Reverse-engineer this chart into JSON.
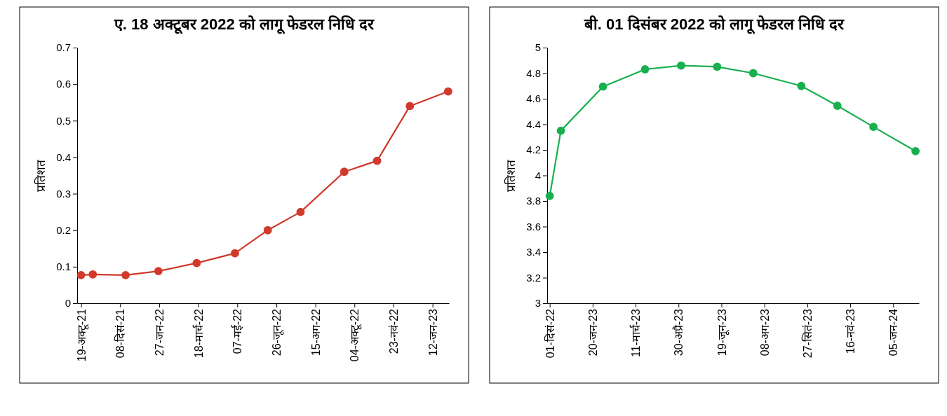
{
  "chart_data": [
    {
      "type": "line",
      "title": "ए. 18 अक्टूबर 2022 को लागू फेडरल निधि दर",
      "ylabel": "प्रतिशत",
      "marker": "circle",
      "grid": false,
      "x": [
        "2021-10-19",
        "2021-11-03",
        "2021-12-15",
        "2022-01-26",
        "2022-03-16",
        "2022-05-04",
        "2022-06-15",
        "2022-07-27",
        "2022-09-21",
        "2022-11-02",
        "2022-12-14",
        "2023-02-01"
      ],
      "series": [
        {
          "color": "#d0392b",
          "values": [
            0.077,
            0.079,
            0.077,
            0.088,
            0.11,
            0.137,
            0.2,
            0.25,
            0.36,
            0.39,
            0.54,
            0.58
          ]
        }
      ],
      "xlim": [
        "2021-10-14",
        "2023-02-02"
      ],
      "ylim": [
        0,
        0.7
      ],
      "yticks": [
        0,
        0.1,
        0.2,
        0.3,
        0.4,
        0.5,
        0.6,
        0.7
      ],
      "xticks": [
        {
          "value": "2021-10-19",
          "label": "19-अक्टू-21"
        },
        {
          "value": "2021-12-08",
          "label": "08-दिसं-21"
        },
        {
          "value": "2022-01-27",
          "label": "27-जन-22"
        },
        {
          "value": "2022-03-18",
          "label": "18-मार्च-22"
        },
        {
          "value": "2022-05-07",
          "label": "07-मई-22"
        },
        {
          "value": "2022-06-26",
          "label": "26-जून-22"
        },
        {
          "value": "2022-08-15",
          "label": "15-अग-22"
        },
        {
          "value": "2022-10-04",
          "label": "04-अक्टू-22"
        },
        {
          "value": "2022-11-23",
          "label": "23-नवं-22"
        },
        {
          "value": "2023-01-12",
          "label": "12-जन-23"
        }
      ]
    },
    {
      "type": "line",
      "title": "बी. 01 दिसंबर 2022 को लागू फेडरल निधि दर",
      "ylabel": "प्रतिशत",
      "marker": "circle",
      "grid": false,
      "x": [
        "2022-12-01",
        "2022-12-14",
        "2023-02-01",
        "2023-03-22",
        "2023-05-03",
        "2023-06-14",
        "2023-07-26",
        "2023-09-20",
        "2023-11-01",
        "2023-12-13",
        "2024-01-31"
      ],
      "series": [
        {
          "color": "#18b04f",
          "values": [
            3.84,
            4.35,
            4.695,
            4.83,
            4.86,
            4.85,
            4.8,
            4.7,
            4.545,
            4.38,
            4.19
          ]
        }
      ],
      "xlim": [
        "2022-11-28",
        "2024-02-04"
      ],
      "ylim": [
        3,
        5
      ],
      "yticks": [
        3,
        3.2,
        3.4,
        3.6,
        3.8,
        4,
        4.2,
        4.4,
        4.6,
        4.8,
        5
      ],
      "xticks": [
        {
          "value": "2022-12-01",
          "label": "01-दिसं-22"
        },
        {
          "value": "2023-01-20",
          "label": "20-जन-23"
        },
        {
          "value": "2023-03-11",
          "label": "11-मार्च-23"
        },
        {
          "value": "2023-04-30",
          "label": "30-अप्रै-23"
        },
        {
          "value": "2023-06-19",
          "label": "19-जून-23"
        },
        {
          "value": "2023-08-08",
          "label": "08-अग-23"
        },
        {
          "value": "2023-09-27",
          "label": "27-सितं-23"
        },
        {
          "value": "2023-11-16",
          "label": "16-नवं-23"
        },
        {
          "value": "2024-01-05",
          "label": "05-जन-24"
        }
      ]
    }
  ]
}
